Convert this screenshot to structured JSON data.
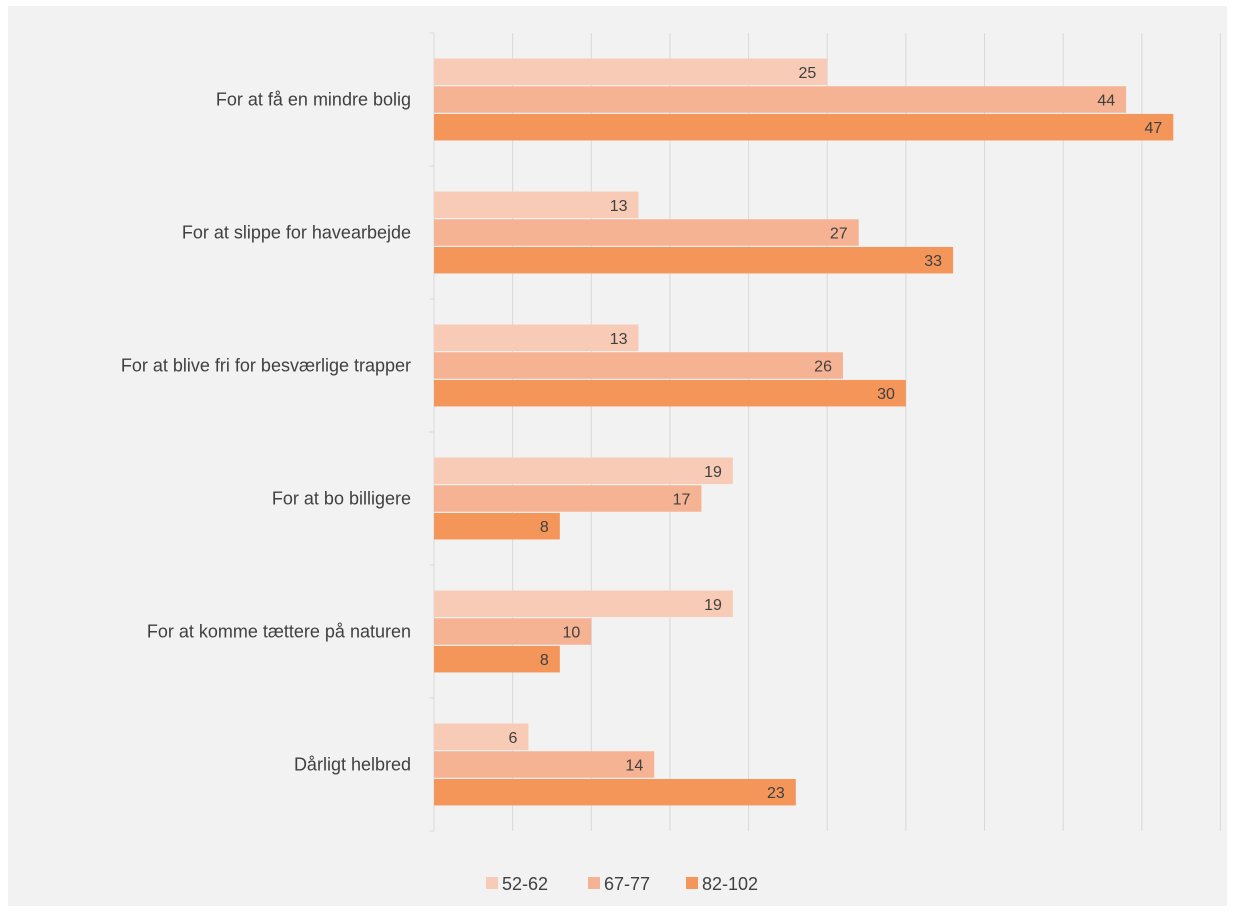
{
  "chart_data": {
    "type": "bar",
    "orientation": "horizontal",
    "categories": [
      "For at få en mindre bolig",
      "For at slippe for havearbejde",
      "For at blive fri for besværlige trapper",
      "For at bo billigere",
      "For at komme tættere på naturen",
      "Dårligt helbred"
    ],
    "series": [
      {
        "name": "52-62",
        "color": "#f8cbb6",
        "values": [
          25,
          13,
          13,
          19,
          19,
          6
        ]
      },
      {
        "name": "67-77",
        "color": "#f6b394",
        "values": [
          44,
          27,
          26,
          17,
          10,
          14
        ]
      },
      {
        "name": "82-102",
        "color": "#f4955a",
        "values": [
          47,
          33,
          30,
          8,
          8,
          23
        ]
      }
    ],
    "xlim": [
      0,
      50
    ],
    "grid": true,
    "legend": "bottom",
    "data_labels": true
  }
}
